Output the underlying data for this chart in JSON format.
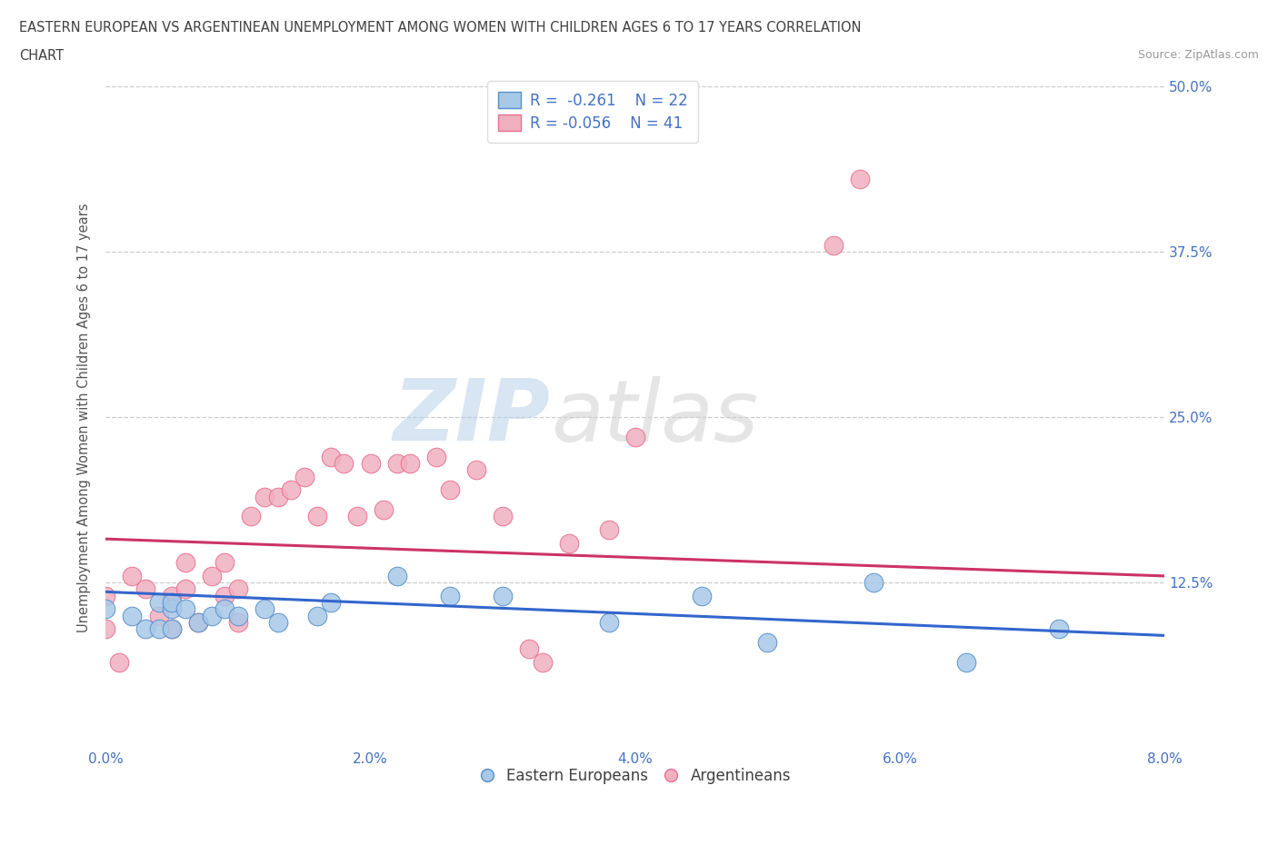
{
  "title_line1": "EASTERN EUROPEAN VS ARGENTINEAN UNEMPLOYMENT AMONG WOMEN WITH CHILDREN AGES 6 TO 17 YEARS CORRELATION",
  "title_line2": "CHART",
  "source_text": "Source: ZipAtlas.com",
  "ylabel": "Unemployment Among Women with Children Ages 6 to 17 years",
  "xlim": [
    0.0,
    0.08
  ],
  "ylim": [
    0.0,
    0.5
  ],
  "xtick_labels": [
    "0.0%",
    "2.0%",
    "4.0%",
    "6.0%",
    "8.0%"
  ],
  "xtick_values": [
    0.0,
    0.02,
    0.04,
    0.06,
    0.08
  ],
  "ytick_labels": [
    "12.5%",
    "25.0%",
    "37.5%",
    "50.0%"
  ],
  "ytick_values": [
    0.125,
    0.25,
    0.375,
    0.5
  ],
  "blue_color": "#a8c8e8",
  "pink_color": "#f0b0c0",
  "blue_edge_color": "#5590c8",
  "pink_edge_color": "#e87090",
  "blue_line_color": "#3366cc",
  "pink_line_color": "#cc3366",
  "watermark_zip": "ZIP",
  "watermark_atlas": "atlas",
  "legend_label_blue": "Eastern Europeans",
  "legend_label_pink": "Argentineans",
  "blue_scatter_x": [
    0.0,
    0.002,
    0.003,
    0.004,
    0.004,
    0.005,
    0.005,
    0.005,
    0.006,
    0.007,
    0.008,
    0.009,
    0.01,
    0.012,
    0.013,
    0.016,
    0.017,
    0.022,
    0.026,
    0.03,
    0.038,
    0.045,
    0.05,
    0.058,
    0.065,
    0.072
  ],
  "blue_scatter_y": [
    0.105,
    0.1,
    0.09,
    0.11,
    0.09,
    0.105,
    0.11,
    0.09,
    0.105,
    0.095,
    0.1,
    0.105,
    0.1,
    0.105,
    0.095,
    0.1,
    0.11,
    0.13,
    0.115,
    0.115,
    0.095,
    0.115,
    0.08,
    0.125,
    0.065,
    0.09
  ],
  "pink_scatter_x": [
    0.0,
    0.0,
    0.001,
    0.002,
    0.003,
    0.004,
    0.005,
    0.005,
    0.006,
    0.006,
    0.007,
    0.008,
    0.009,
    0.009,
    0.01,
    0.01,
    0.011,
    0.012,
    0.013,
    0.014,
    0.015,
    0.016,
    0.017,
    0.018,
    0.019,
    0.02,
    0.021,
    0.022,
    0.023,
    0.025,
    0.026,
    0.028,
    0.03,
    0.032,
    0.033,
    0.035,
    0.038,
    0.04,
    0.055,
    0.057
  ],
  "pink_scatter_y": [
    0.115,
    0.09,
    0.065,
    0.13,
    0.12,
    0.1,
    0.115,
    0.09,
    0.14,
    0.12,
    0.095,
    0.13,
    0.115,
    0.14,
    0.095,
    0.12,
    0.175,
    0.19,
    0.19,
    0.195,
    0.205,
    0.175,
    0.22,
    0.215,
    0.175,
    0.215,
    0.18,
    0.215,
    0.215,
    0.22,
    0.195,
    0.21,
    0.175,
    0.075,
    0.065,
    0.155,
    0.165,
    0.235,
    0.38,
    0.43
  ],
  "background_color": "#ffffff",
  "grid_color": "#cccccc",
  "title_color": "#404040",
  "axis_label_color": "#555555",
  "tick_label_color": "#4472c4",
  "right_ytick_color": "#4472c4",
  "blue_line_x0": 0.0,
  "blue_line_x1": 0.08,
  "blue_line_y0": 0.118,
  "blue_line_y1": 0.085,
  "pink_line_x0": 0.0,
  "pink_line_x1": 0.08,
  "pink_line_y0": 0.158,
  "pink_line_y1": 0.13
}
